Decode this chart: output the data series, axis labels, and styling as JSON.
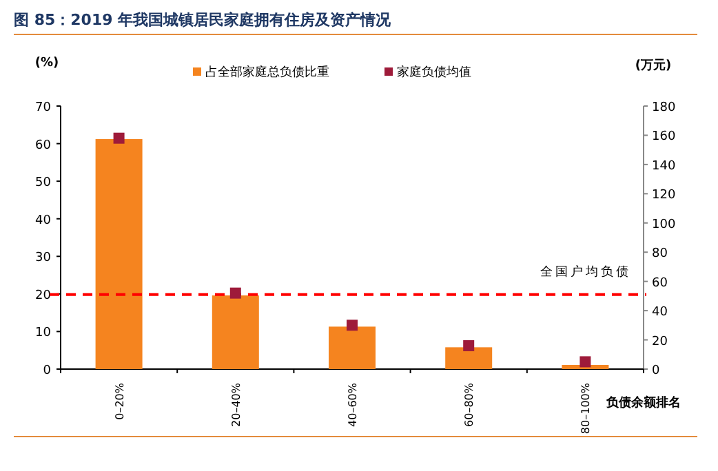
{
  "chart_data": {
    "type": "bar",
    "title": "图 85：2019 年我国城镇居民家庭拥有住房及资产情况",
    "ylabel": "(%)",
    "y2label": "(万元)",
    "xlabel": "负债余额排名",
    "categories": [
      "0–20%",
      "20–40%",
      "40–60%",
      "60–80%",
      "80–100%"
    ],
    "series": [
      {
        "name": "占全部家庭总负债比重",
        "color": "#f5841f",
        "values": [
          61.2,
          19.6,
          11.3,
          5.8,
          1.1
        ]
      },
      {
        "name": "家庭负债均值",
        "type": "scatter",
        "marker": "square",
        "axis": "y2",
        "color": "#9e1b3a",
        "values": [
          158,
          52,
          30,
          16,
          5
        ]
      }
    ],
    "ylim": [
      0,
      70
    ],
    "yticks": [
      0,
      10,
      20,
      30,
      40,
      50,
      60,
      70
    ],
    "y2lim": [
      0,
      180
    ],
    "y2ticks": [
      0,
      20,
      40,
      60,
      80,
      100,
      120,
      140,
      160,
      180
    ],
    "ref_lines": [
      {
        "axis": "y2",
        "value": 51,
        "label": "全国户均负债",
        "color": "#ff0000",
        "line_style": "dashed"
      }
    ],
    "legend": "top"
  }
}
